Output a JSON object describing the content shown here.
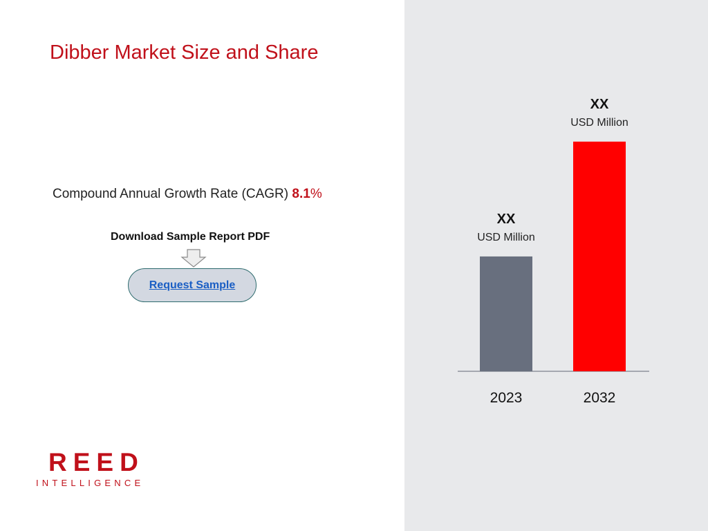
{
  "title": "Dibber Market Size and Share",
  "cagr": {
    "label": "Compound Annual Growth Rate (CAGR)",
    "value": "8.1",
    "unit": "%"
  },
  "download": {
    "label": "Download Sample Report PDF"
  },
  "request_button": {
    "label": "Request Sample"
  },
  "logo": {
    "name": "REED",
    "sub": "INTELLIGENCE"
  },
  "colors": {
    "brand_red": "#c0101a",
    "bar_2023": "#686f7e",
    "bar_2032": "#ff0000",
    "panel_bg": "#e8e9eb"
  },
  "chart_data": {
    "type": "bar",
    "categories": [
      "2023",
      "2032"
    ],
    "values": [
      40,
      80
    ],
    "value_labels": [
      "XX",
      "XX"
    ],
    "unit_labels": [
      "USD Million",
      "USD Million"
    ],
    "colors": [
      "#686f7e",
      "#ff0000"
    ],
    "grid": false
  }
}
